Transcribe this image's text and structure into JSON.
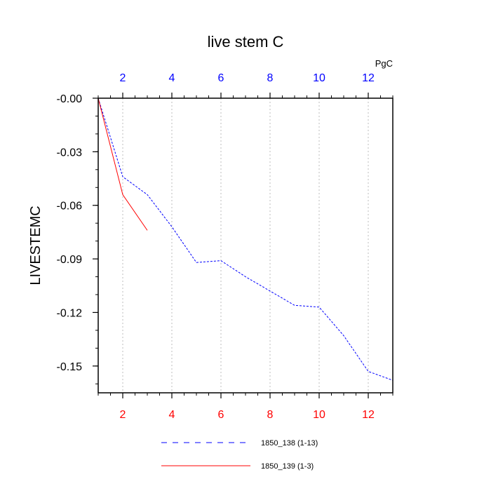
{
  "chart_data": {
    "type": "line",
    "title": "live stem C",
    "ylabel": "LIVESTEMC",
    "units_label": "PgC",
    "xlim": [
      1,
      13
    ],
    "ylim": [
      -0.165,
      0.0
    ],
    "x_ticks": [
      2,
      4,
      6,
      8,
      10,
      12
    ],
    "y_ticks": [
      -0.15,
      -0.12,
      -0.09,
      -0.06,
      -0.03,
      0.0
    ],
    "y_tick_labels": [
      "-0.15",
      "-0.12",
      "-0.09",
      "-0.06",
      "-0.03",
      "-0.00"
    ],
    "top_axis_color": "#0000ff",
    "bottom_axis_color": "#ff0000",
    "grid_x": true,
    "legend_position": "bottom",
    "series": [
      {
        "name": "1850_138 (1-13)",
        "color": "#0000ff",
        "style": "dashed",
        "x": [
          1,
          2,
          3,
          4,
          5,
          6,
          7,
          8,
          9,
          10,
          11,
          12,
          13
        ],
        "y": [
          0.0,
          -0.044,
          -0.054,
          -0.072,
          -0.092,
          -0.091,
          -0.1,
          -0.108,
          -0.116,
          -0.117,
          -0.133,
          -0.153,
          -0.158
        ]
      },
      {
        "name": "1850_139 (1-3)",
        "color": "#ff0000",
        "style": "solid",
        "x": [
          1,
          2,
          3
        ],
        "y": [
          0.0,
          -0.054,
          -0.074
        ]
      }
    ]
  }
}
